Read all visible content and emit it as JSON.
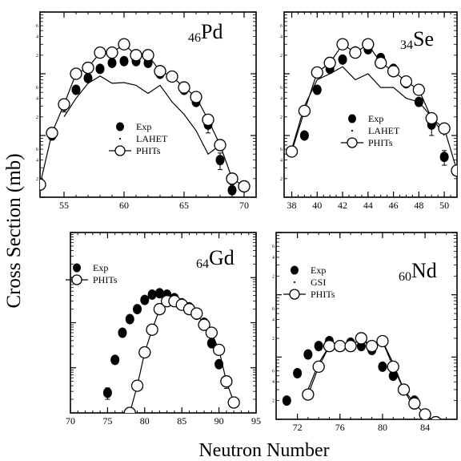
{
  "figure": {
    "ylabel": "Cross Section (mb)",
    "xlabel": "Neutron Number"
  },
  "chart_data": [
    {
      "type": "scatter",
      "id": "pd",
      "label_sub": "46",
      "label_main": "Pd",
      "xlim": [
        53,
        71
      ],
      "ylim": [
        0.01,
        10
      ],
      "yscale": "log",
      "xticks": [
        55,
        60,
        65,
        70
      ],
      "yticks": [
        {
          "v": 0.01,
          "t": "0.01"
        },
        {
          "v": 0.1,
          "t": "0.1"
        },
        {
          "v": 1,
          "t": "1"
        },
        {
          "v": 10,
          "t": "10"
        }
      ],
      "legend": [
        "Exp",
        "LAHET",
        "PHITs"
      ],
      "legend_position": "middle-left",
      "series": [
        {
          "name": "Exp",
          "style": "filled",
          "x": [
            54,
            55,
            56,
            57,
            58,
            59,
            60,
            61,
            62,
            63,
            64,
            65,
            66,
            67,
            68,
            69
          ],
          "y": [
            0.1,
            0.3,
            0.55,
            0.85,
            1.2,
            1.5,
            1.6,
            1.6,
            1.5,
            1.0,
            0.9,
            0.55,
            0.35,
            0.15,
            0.04,
            0.013
          ],
          "err": [
            0,
            0.06,
            0,
            0,
            0,
            0,
            0,
            0,
            0,
            0,
            0,
            0,
            0,
            0.04,
            0.012,
            0.003
          ]
        },
        {
          "name": "LAHET",
          "style": "line",
          "x": [
            55,
            56,
            57,
            58,
            59,
            60,
            61,
            62,
            63,
            64,
            65,
            66,
            67,
            68
          ],
          "y": [
            0.2,
            0.4,
            0.7,
            0.92,
            0.7,
            0.72,
            0.65,
            0.48,
            0.65,
            0.35,
            0.22,
            0.12,
            0.05,
            0.07
          ]
        },
        {
          "name": "PHITs",
          "style": "open",
          "x": [
            53,
            54,
            55,
            56,
            57,
            58,
            59,
            60,
            61,
            62,
            63,
            64,
            65,
            66,
            67,
            68,
            69,
            70
          ],
          "y": [
            0.016,
            0.11,
            0.32,
            1.0,
            1.25,
            2.2,
            2.2,
            3.0,
            2.0,
            2.0,
            1.1,
            0.9,
            0.6,
            0.42,
            0.18,
            0.07,
            0.02,
            0.015
          ]
        }
      ]
    },
    {
      "type": "scatter",
      "id": "se",
      "label_sub": "34",
      "label_main": "Se",
      "xlim": [
        37.4,
        51
      ],
      "ylim": [
        0.01,
        10
      ],
      "yscale": "log",
      "xticks": [
        38,
        40,
        42,
        44,
        46,
        48,
        50
      ],
      "yticks": [
        {
          "v": 0.01,
          "t": "0.01"
        },
        {
          "v": 0.1,
          "t": "0.1"
        },
        {
          "v": 1,
          "t": "1"
        },
        {
          "v": 10,
          "t": "10"
        }
      ],
      "legend": [
        "Exp",
        "LAHET",
        "PHITs"
      ],
      "legend_position": "middle-left",
      "series": [
        {
          "name": "Exp",
          "style": "filled",
          "x": [
            39,
            40,
            41,
            42,
            43,
            44,
            45,
            46,
            47,
            48,
            49,
            50
          ],
          "y": [
            0.1,
            0.55,
            1.2,
            1.7,
            2.3,
            2.5,
            1.8,
            1.2,
            0.7,
            0.35,
            0.15,
            0.045
          ],
          "err": [
            0,
            0,
            0,
            0,
            0,
            0,
            0,
            0,
            0,
            0,
            0.05,
            0.012
          ]
        },
        {
          "name": "LAHET",
          "style": "line",
          "x": [
            38,
            39,
            40,
            41,
            42,
            43,
            44,
            45,
            46,
            47,
            48,
            49,
            50
          ],
          "y": [
            0.06,
            0.3,
            0.8,
            1.0,
            1.3,
            0.8,
            1.0,
            0.6,
            0.6,
            0.4,
            0.35,
            0.2,
            0.1
          ]
        },
        {
          "name": "PHITs",
          "style": "open",
          "x": [
            38,
            39,
            40,
            41,
            42,
            43,
            44,
            45,
            46,
            47,
            48,
            49,
            50,
            51
          ],
          "y": [
            0.055,
            0.25,
            1.05,
            1.5,
            3.0,
            2.2,
            3.0,
            1.5,
            1.1,
            0.75,
            0.55,
            0.19,
            0.13,
            0.027
          ]
        }
      ]
    },
    {
      "type": "scatter",
      "id": "gd",
      "label_sub": "64",
      "label_main": "Gd",
      "xlim": [
        70,
        95
      ],
      "ylim": [
        0.001,
        10
      ],
      "yscale": "log",
      "xticks": [
        70,
        75,
        80,
        85,
        90,
        95
      ],
      "yticks": [
        {
          "v": 0.001,
          "t": "0.001"
        },
        {
          "v": 0.01,
          "t": "0.01"
        },
        {
          "v": 0.1,
          "t": "0.1"
        },
        {
          "v": 1,
          "t": "1"
        },
        {
          "v": 10,
          "t": "10"
        }
      ],
      "legend": [
        "Exp",
        "PHITs"
      ],
      "legend_position": "top-left",
      "series": [
        {
          "name": "Exp",
          "style": "filled",
          "x": [
            75,
            76,
            77,
            78,
            79,
            80,
            81,
            82,
            83,
            84,
            85,
            86,
            87,
            88,
            89,
            90,
            91
          ],
          "y": [
            0.0028,
            0.015,
            0.06,
            0.12,
            0.2,
            0.32,
            0.42,
            0.45,
            0.42,
            0.35,
            0.27,
            0.22,
            0.15,
            0.1,
            0.035,
            0.012,
            0.005
          ],
          "err": [
            0.0008,
            0,
            0,
            0,
            0,
            0,
            0,
            0,
            0,
            0,
            0,
            0,
            0,
            0,
            0,
            0,
            0.0015
          ]
        },
        {
          "name": "PHITs",
          "style": "open",
          "x": [
            78,
            79,
            80,
            81,
            82,
            83,
            84,
            85,
            86,
            87,
            88,
            89,
            90,
            91,
            92
          ],
          "y": [
            0.001,
            0.004,
            0.022,
            0.07,
            0.2,
            0.3,
            0.3,
            0.25,
            0.2,
            0.16,
            0.09,
            0.06,
            0.025,
            0.005,
            0.0017
          ]
        }
      ]
    },
    {
      "type": "scatter",
      "id": "nd",
      "label_sub": "60",
      "label_main": "Nd",
      "xlim": [
        70,
        87
      ],
      "ylim": [
        0.01,
        10
      ],
      "yscale": "log",
      "xticks": [
        72,
        76,
        80,
        84
      ],
      "yticks": [
        {
          "v": 0.01,
          "t": "0.01"
        },
        {
          "v": 0.1,
          "t": "0.1"
        },
        {
          "v": 1,
          "t": "1"
        },
        {
          "v": 10,
          "t": "10"
        }
      ],
      "legend": [
        "Exp",
        "GSI",
        "PHITs"
      ],
      "legend_position": "top-left",
      "series": [
        {
          "name": "Exp",
          "style": "filled",
          "x": [
            71,
            72,
            73,
            74,
            75,
            76,
            77,
            78,
            79,
            80,
            81,
            82,
            83,
            84
          ],
          "y": [
            0.02,
            0.055,
            0.11,
            0.15,
            0.18,
            0.15,
            0.17,
            0.15,
            0.13,
            0.07,
            0.05,
            0.03,
            0.02,
            0.012
          ]
        },
        {
          "name": "GSI",
          "style": "line",
          "x": [
            73,
            74,
            75,
            76,
            77,
            78,
            79,
            80,
            81,
            82,
            83
          ],
          "y": [
            0.03,
            0.08,
            0.15,
            0.16,
            0.15,
            0.2,
            0.14,
            0.18,
            0.08,
            0.03,
            0.015
          ]
        },
        {
          "name": "PHITs",
          "style": "open",
          "x": [
            73,
            74,
            75,
            76,
            77,
            78,
            79,
            80,
            81,
            82,
            83,
            84,
            85
          ],
          "y": [
            0.025,
            0.07,
            0.15,
            0.15,
            0.15,
            0.2,
            0.15,
            0.18,
            0.07,
            0.03,
            0.018,
            0.012,
            0.009
          ]
        }
      ]
    }
  ]
}
